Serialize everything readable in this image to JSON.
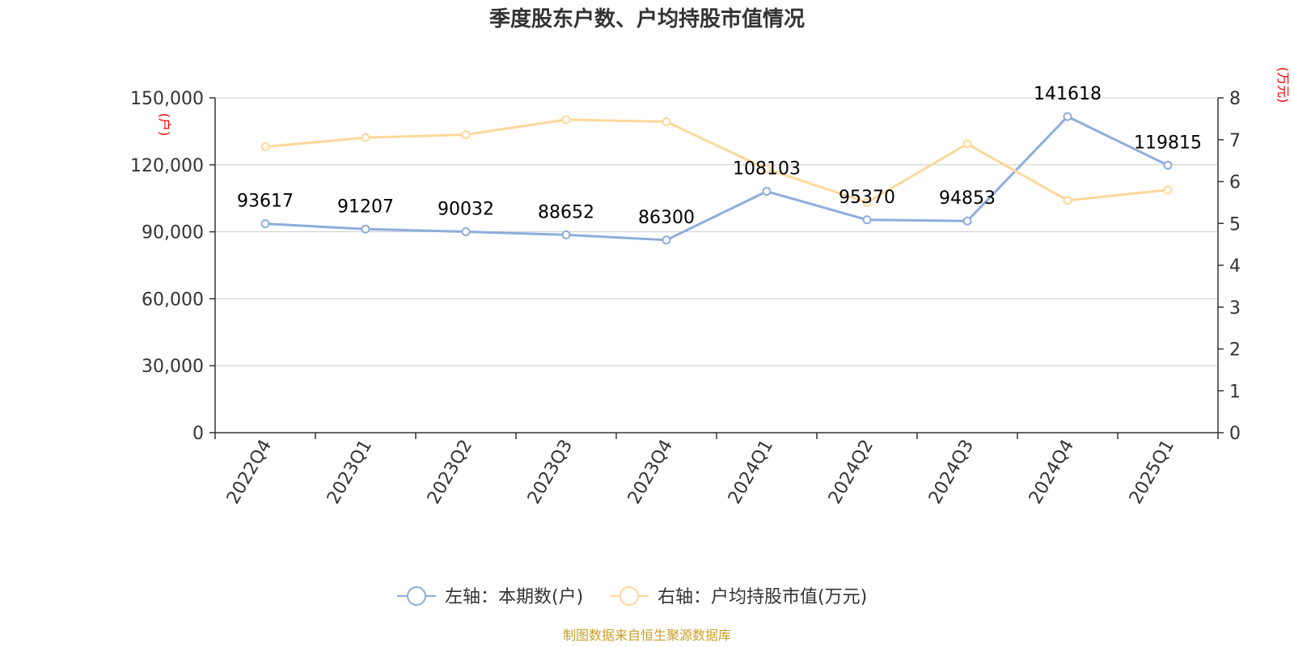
{
  "title": "季度股东户数、户均持股市值情况",
  "source": "制图数据来自恒生聚源数据库",
  "chart_data": {
    "type": "line",
    "categories": [
      "2022Q4",
      "2023Q1",
      "2023Q2",
      "2023Q3",
      "2023Q4",
      "2024Q1",
      "2024Q2",
      "2024Q3",
      "2024Q4",
      "2025Q1"
    ],
    "left_axis": {
      "unit": "(户)",
      "ylim": [
        0,
        150000
      ],
      "ticks": [
        "0",
        "30,000",
        "60,000",
        "90,000",
        "120,000",
        "150,000"
      ],
      "tick_values": [
        0,
        30000,
        60000,
        90000,
        120000,
        150000
      ]
    },
    "right_axis": {
      "unit": "(万元)",
      "ylim": [
        0,
        8
      ],
      "ticks": [
        "0",
        "1",
        "2",
        "3",
        "4",
        "5",
        "6",
        "7",
        "8"
      ],
      "tick_values": [
        0,
        1,
        2,
        3,
        4,
        5,
        6,
        7,
        8
      ]
    },
    "grid": true,
    "legend_position": "bottom",
    "series": [
      {
        "name": "左轴：本期数(户)",
        "axis": "left",
        "color": "#8eaddb",
        "values": [
          93617,
          91207,
          90032,
          88652,
          86300,
          108103,
          95370,
          94853,
          141618,
          119815
        ],
        "labels": [
          "93617",
          "91207",
          "90032",
          "88652",
          "86300",
          "108103",
          "95370",
          "94853",
          "141618",
          "119815"
        ]
      },
      {
        "name": "右轴：户均持股市值(万元)",
        "axis": "right",
        "color": "#fdd89a",
        "values": [
          6.83,
          7.05,
          7.12,
          7.48,
          7.43,
          6.3,
          5.5,
          6.9,
          5.55,
          5.8
        ]
      }
    ]
  }
}
